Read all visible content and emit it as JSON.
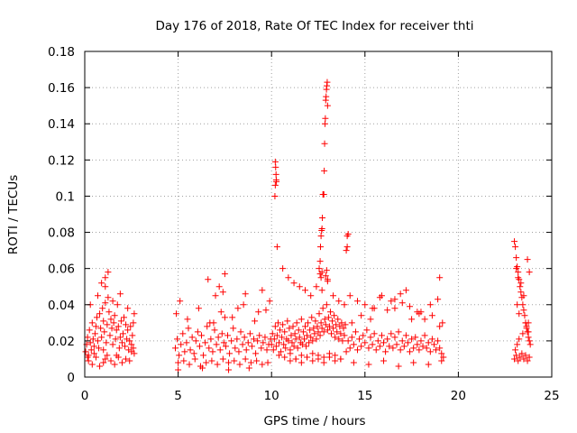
{
  "chart_data": {
    "type": "scatter",
    "title": "Day 176 of 2018, Rate Of TEC Index for receiver thti",
    "xlabel": "GPS time / hours",
    "ylabel": "ROTI / TECUs",
    "xlim": [
      0,
      25
    ],
    "ylim": [
      0,
      0.18
    ],
    "xticks": [
      "0",
      "5",
      "10",
      "15",
      "20",
      "25"
    ],
    "yticks": [
      "0",
      "0.02",
      "0.04",
      "0.06",
      "0.08",
      "0.1",
      "0.12",
      "0.14",
      "0.16",
      "0.18"
    ],
    "grid": true,
    "marker": "+",
    "color": "#ff0000",
    "series": [
      {
        "name": "ROTI",
        "x": [
          0.05,
          0.1,
          0.15,
          0.2,
          0.25,
          0.3,
          0.35,
          0.4,
          0.45,
          0.5,
          0.55,
          0.6,
          0.65,
          0.7,
          0.75,
          0.8,
          0.85,
          0.9,
          0.95,
          1.0,
          1.05,
          1.1,
          1.15,
          1.2,
          1.25,
          1.3,
          1.35,
          1.4,
          1.45,
          1.5,
          1.55,
          1.6,
          1.65,
          1.7,
          1.75,
          1.8,
          1.85,
          1.9,
          1.95,
          2.0,
          2.05,
          2.1,
          2.15,
          2.2,
          2.25,
          2.3,
          2.35,
          2.4,
          2.45,
          2.5,
          2.55,
          2.6,
          2.65,
          0.2,
          0.4,
          0.6,
          0.8,
          1.0,
          1.1,
          1.2,
          1.4,
          1.6,
          1.8,
          2.0,
          2.2,
          2.4,
          0.3,
          0.7,
          1.1,
          1.5,
          1.9,
          2.3,
          0.9,
          1.1,
          1.25,
          2.6,
          2.65,
          0.15,
          0.5,
          1.0,
          1.7,
          2.5,
          4.85,
          4.95,
          5.05,
          5.15,
          5.25,
          5.35,
          5.45,
          5.55,
          5.65,
          5.75,
          5.85,
          5.95,
          6.05,
          6.15,
          6.25,
          6.35,
          6.45,
          6.55,
          6.65,
          6.75,
          6.85,
          6.95,
          7.05,
          7.15,
          7.25,
          7.35,
          7.45,
          7.55,
          7.65,
          7.75,
          7.85,
          7.95,
          8.05,
          8.15,
          8.25,
          8.35,
          8.45,
          8.55,
          8.65,
          8.75,
          8.85,
          8.95,
          9.05,
          9.15,
          9.25,
          9.35,
          9.45,
          9.55,
          9.65,
          9.75,
          9.85,
          9.95,
          5.0,
          5.3,
          5.6,
          5.9,
          6.2,
          6.5,
          6.8,
          7.1,
          7.4,
          7.7,
          8.0,
          8.3,
          8.6,
          8.9,
          9.2,
          9.5,
          9.8,
          4.9,
          5.5,
          6.1,
          6.7,
          7.3,
          7.9,
          8.5,
          9.1,
          9.7,
          5.1,
          6.6,
          7.0,
          7.2,
          7.4,
          7.5,
          8.2,
          8.6,
          9.3,
          9.5,
          9.9,
          6.9,
          7.5,
          5.0,
          6.3,
          7.7,
          8.8,
          10.0,
          10.05,
          10.1,
          10.15,
          10.2,
          10.25,
          10.3,
          10.35,
          10.4,
          10.45,
          10.5,
          10.55,
          10.6,
          10.65,
          10.7,
          10.75,
          10.8,
          10.85,
          10.9,
          10.95,
          11.0,
          11.05,
          11.1,
          11.15,
          11.2,
          11.25,
          11.3,
          11.35,
          11.4,
          11.45,
          11.5,
          11.55,
          11.6,
          11.65,
          11.7,
          11.75,
          11.8,
          11.85,
          11.9,
          11.95,
          12.0,
          12.05,
          12.1,
          12.15,
          12.2,
          12.25,
          12.3,
          12.35,
          12.4,
          12.45,
          12.5,
          12.55,
          12.6,
          12.65,
          12.7,
          12.75,
          12.8,
          12.85,
          12.9,
          12.95,
          13.0,
          13.05,
          13.1,
          13.15,
          13.2,
          13.25,
          13.3,
          13.35,
          13.4,
          13.45,
          13.5,
          13.55,
          13.6,
          13.65,
          13.7,
          13.75,
          13.8,
          13.85,
          13.9,
          13.95,
          10.2,
          10.22,
          10.24,
          10.26,
          10.2,
          10.25,
          10.18,
          10.3,
          10.6,
          10.9,
          11.2,
          11.5,
          11.8,
          12.1,
          12.4,
          12.7,
          13.0,
          13.3,
          13.6,
          13.9,
          10.4,
          10.7,
          11.0,
          11.3,
          11.6,
          11.9,
          12.2,
          12.5,
          12.8,
          13.1,
          13.4,
          13.7,
          12.55,
          12.6,
          12.62,
          12.65,
          12.68,
          12.7,
          12.72,
          12.75,
          12.8,
          12.82,
          12.84,
          12.86,
          12.88,
          12.9,
          12.92,
          12.94,
          12.96,
          12.98,
          13.0,
          12.78,
          12.6,
          12.65,
          12.7,
          12.9,
          13.0,
          12.95,
          11.0,
          11.3,
          11.6,
          11.9,
          12.2,
          12.5,
          12.8,
          13.1,
          13.4,
          13.7,
          14.0,
          14.05,
          14.1,
          14.05,
          14.0,
          14.1,
          14.2,
          14.3,
          14.4,
          14.5,
          14.6,
          14.7,
          14.8,
          14.9,
          15.0,
          15.1,
          15.2,
          15.3,
          15.4,
          15.5,
          15.6,
          15.7,
          15.8,
          15.9,
          16.0,
          16.1,
          16.2,
          16.3,
          16.4,
          16.5,
          16.6,
          16.7,
          16.8,
          16.9,
          17.0,
          17.1,
          17.2,
          17.3,
          17.4,
          17.5,
          17.6,
          17.7,
          17.8,
          17.9,
          18.0,
          18.1,
          18.2,
          18.3,
          18.4,
          18.5,
          18.6,
          18.7,
          18.8,
          18.9,
          19.0,
          19.1,
          19.2,
          14.2,
          14.6,
          15.0,
          15.4,
          15.8,
          16.2,
          16.6,
          17.0,
          17.4,
          17.8,
          18.2,
          18.6,
          19.0,
          14.4,
          15.2,
          16.0,
          16.8,
          17.6,
          18.4,
          19.1,
          14.3,
          14.8,
          15.5,
          15.9,
          16.4,
          16.9,
          17.2,
          17.5,
          18.0,
          18.5,
          18.9,
          19.0,
          15.3,
          16.6,
          17.9,
          19.15,
          23.0,
          23.05,
          23.1,
          23.15,
          23.2,
          23.25,
          23.3,
          23.35,
          23.4,
          23.45,
          23.5,
          23.55,
          23.6,
          23.65,
          23.7,
          23.75,
          23.8,
          23.85,
          23.0,
          23.1,
          23.2,
          23.3,
          23.4,
          23.5,
          23.6,
          23.7,
          23.8,
          23.05,
          23.15,
          23.25,
          23.45,
          23.65,
          23.75,
          23.1,
          23.2,
          23.35,
          23.5,
          23.7,
          23.8,
          23.15,
          23.25,
          23.6,
          23.75
        ],
        "y": [
          0.014,
          0.018,
          0.022,
          0.012,
          0.026,
          0.019,
          0.015,
          0.03,
          0.021,
          0.017,
          0.024,
          0.028,
          0.033,
          0.02,
          0.016,
          0.035,
          0.027,
          0.022,
          0.038,
          0.031,
          0.025,
          0.041,
          0.019,
          0.029,
          0.044,
          0.036,
          0.023,
          0.032,
          0.027,
          0.018,
          0.03,
          0.034,
          0.021,
          0.026,
          0.04,
          0.028,
          0.016,
          0.022,
          0.031,
          0.019,
          0.024,
          0.033,
          0.017,
          0.029,
          0.021,
          0.026,
          0.015,
          0.02,
          0.028,
          0.018,
          0.023,
          0.016,
          0.013,
          0.009,
          0.007,
          0.011,
          0.006,
          0.008,
          0.01,
          0.012,
          0.009,
          0.007,
          0.011,
          0.008,
          0.01,
          0.009,
          0.04,
          0.045,
          0.05,
          0.042,
          0.046,
          0.038,
          0.052,
          0.055,
          0.058,
          0.03,
          0.035,
          0.011,
          0.013,
          0.015,
          0.012,
          0.014,
          0.016,
          0.021,
          0.012,
          0.018,
          0.024,
          0.014,
          0.019,
          0.027,
          0.015,
          0.022,
          0.013,
          0.02,
          0.025,
          0.017,
          0.023,
          0.012,
          0.019,
          0.028,
          0.016,
          0.021,
          0.014,
          0.026,
          0.018,
          0.022,
          0.015,
          0.024,
          0.019,
          0.017,
          0.023,
          0.013,
          0.02,
          0.027,
          0.016,
          0.021,
          0.014,
          0.025,
          0.018,
          0.022,
          0.015,
          0.019,
          0.024,
          0.017,
          0.021,
          0.013,
          0.02,
          0.023,
          0.016,
          0.019,
          0.022,
          0.015,
          0.018,
          0.021,
          0.008,
          0.009,
          0.007,
          0.01,
          0.006,
          0.008,
          0.009,
          0.007,
          0.01,
          0.008,
          0.009,
          0.007,
          0.01,
          0.008,
          0.009,
          0.007,
          0.008,
          0.035,
          0.032,
          0.038,
          0.03,
          0.036,
          0.033,
          0.04,
          0.031,
          0.037,
          0.042,
          0.054,
          0.045,
          0.05,
          0.047,
          0.057,
          0.038,
          0.046,
          0.036,
          0.048,
          0.042,
          0.03,
          0.033,
          0.004,
          0.005,
          0.004,
          0.005,
          0.018,
          0.024,
          0.015,
          0.021,
          0.028,
          0.017,
          0.023,
          0.03,
          0.019,
          0.026,
          0.014,
          0.022,
          0.029,
          0.018,
          0.025,
          0.016,
          0.021,
          0.031,
          0.02,
          0.027,
          0.015,
          0.023,
          0.019,
          0.028,
          0.017,
          0.024,
          0.021,
          0.03,
          0.016,
          0.026,
          0.022,
          0.019,
          0.032,
          0.018,
          0.025,
          0.021,
          0.028,
          0.017,
          0.023,
          0.03,
          0.019,
          0.026,
          0.022,
          0.033,
          0.02,
          0.027,
          0.024,
          0.031,
          0.021,
          0.028,
          0.025,
          0.035,
          0.023,
          0.03,
          0.027,
          0.038,
          0.025,
          0.032,
          0.029,
          0.04,
          0.026,
          0.033,
          0.028,
          0.036,
          0.024,
          0.031,
          0.027,
          0.034,
          0.022,
          0.029,
          0.025,
          0.032,
          0.021,
          0.028,
          0.024,
          0.03,
          0.02,
          0.027,
          0.023,
          0.029,
          0.119,
          0.116,
          0.112,
          0.108,
          0.106,
          0.109,
          0.1,
          0.072,
          0.06,
          0.055,
          0.052,
          0.05,
          0.048,
          0.045,
          0.05,
          0.048,
          0.053,
          0.045,
          0.042,
          0.04,
          0.012,
          0.011,
          0.013,
          0.01,
          0.012,
          0.011,
          0.013,
          0.012,
          0.011,
          0.013,
          0.012,
          0.01,
          0.06,
          0.064,
          0.072,
          0.078,
          0.081,
          0.082,
          0.088,
          0.101,
          0.101,
          0.114,
          0.129,
          0.14,
          0.143,
          0.153,
          0.155,
          0.159,
          0.161,
          0.163,
          0.15,
          0.101,
          0.057,
          0.055,
          0.058,
          0.056,
          0.054,
          0.059,
          0.009,
          0.01,
          0.008,
          0.011,
          0.009,
          0.01,
          0.008,
          0.011,
          0.009,
          0.01,
          0.07,
          0.072,
          0.079,
          0.078,
          0.014,
          0.02,
          0.016,
          0.022,
          0.018,
          0.025,
          0.015,
          0.021,
          0.017,
          0.023,
          0.019,
          0.026,
          0.016,
          0.022,
          0.018,
          0.024,
          0.015,
          0.02,
          0.017,
          0.023,
          0.019,
          0.014,
          0.021,
          0.017,
          0.024,
          0.016,
          0.022,
          0.018,
          0.025,
          0.015,
          0.02,
          0.017,
          0.023,
          0.019,
          0.014,
          0.021,
          0.016,
          0.022,
          0.018,
          0.015,
          0.02,
          0.017,
          0.023,
          0.016,
          0.019,
          0.014,
          0.021,
          0.018,
          0.015,
          0.02,
          0.016,
          0.013,
          0.011,
          0.045,
          0.042,
          0.04,
          0.038,
          0.044,
          0.037,
          0.043,
          0.041,
          0.039,
          0.036,
          0.032,
          0.034,
          0.028,
          0.008,
          0.007,
          0.009,
          0.006,
          0.008,
          0.007,
          0.009,
          0.03,
          0.034,
          0.038,
          0.045,
          0.042,
          0.046,
          0.048,
          0.032,
          0.036,
          0.04,
          0.043,
          0.055,
          0.032,
          0.038,
          0.035,
          0.03,
          0.075,
          0.072,
          0.066,
          0.061,
          0.058,
          0.054,
          0.05,
          0.047,
          0.044,
          0.04,
          0.037,
          0.034,
          0.03,
          0.028,
          0.025,
          0.022,
          0.02,
          0.018,
          0.01,
          0.012,
          0.009,
          0.011,
          0.013,
          0.01,
          0.012,
          0.009,
          0.011,
          0.015,
          0.018,
          0.021,
          0.024,
          0.027,
          0.03,
          0.06,
          0.055,
          0.052,
          0.045,
          0.065,
          0.058,
          0.04,
          0.035,
          0.03,
          0.025
        ]
      }
    ]
  }
}
